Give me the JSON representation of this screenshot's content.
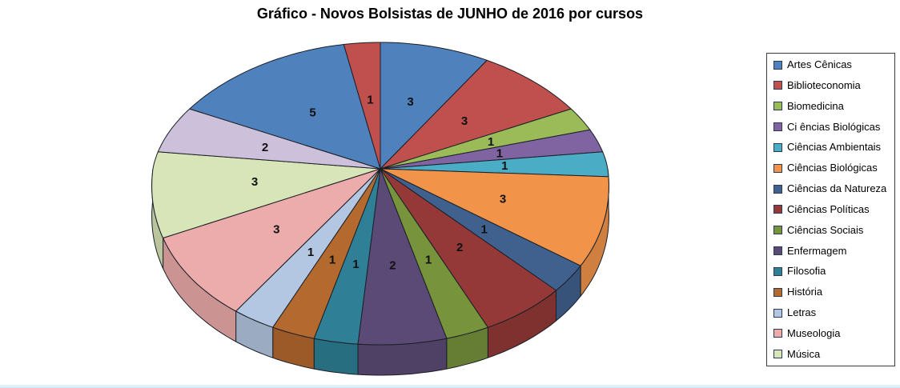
{
  "page": {
    "background": "#ffffff",
    "bottom_strip_color": "#e2f1f9"
  },
  "chart_data": {
    "type": "pie",
    "three_d": true,
    "title": "Gráfico - Novos Bolsistas de JUNHO de 2016 por cursos",
    "legend_position": "right",
    "data_labels": "values",
    "values_total": 35,
    "slices": [
      {
        "legend": "Artes Cênicas",
        "value": 3,
        "color": "#4F81BD"
      },
      {
        "legend": "Biblioteconomia",
        "value": 3,
        "color": "#C0504D"
      },
      {
        "legend": "Biomedicina",
        "value": 1,
        "color": "#9BBB59"
      },
      {
        "legend": "Ci ências Biológicas",
        "value": 1,
        "color": "#8064A2"
      },
      {
        "legend": "Ciências Ambientais",
        "value": 1,
        "color": "#4BACC6"
      },
      {
        "legend": "Ciências Biológicas",
        "value": 3,
        "color": "#F1944A"
      },
      {
        "legend": "Ciências da Natureza",
        "value": 1,
        "color": "#40618E"
      },
      {
        "legend": "Ciências Políticas",
        "value": 2,
        "color": "#943937"
      },
      {
        "legend": "Ciências Sociais",
        "value": 1,
        "color": "#77933C"
      },
      {
        "legend": "Enfermagem",
        "value": 2,
        "color": "#5C4A76"
      },
      {
        "legend": "Filosofia",
        "value": 1,
        "color": "#2F8096"
      },
      {
        "legend": "História",
        "value": 1,
        "color": "#B4692E"
      },
      {
        "legend": "Letras",
        "value": 1,
        "color": "#B3C7E2"
      },
      {
        "legend": "Museologia",
        "value": 3,
        "color": "#ECACAB"
      },
      {
        "legend": "Música",
        "value": 3,
        "color": "#D8E5B8"
      },
      {
        "legend": null,
        "value": 2,
        "color": "#CCC0DB"
      },
      {
        "legend": null,
        "value": 5,
        "color": "#4F81BD"
      },
      {
        "legend": null,
        "value": 1,
        "color": "#C0504D"
      }
    ]
  }
}
